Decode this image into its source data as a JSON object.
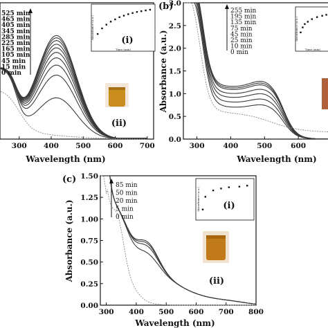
{
  "chart_data": [
    {
      "type": "line",
      "panel": "",
      "xlabel": "Wavelength (nm)",
      "ylabel": "",
      "xlim": [
        240,
        720
      ],
      "ylim": [
        0,
        3.0
      ],
      "x_ticks": [
        "300",
        "400",
        "500",
        "600",
        "700"
      ],
      "y_ticks": [],
      "legend": [
        "525 min",
        "465 min",
        "405 min",
        "345 min",
        "285 min",
        "225 min",
        "165 min",
        "105 min",
        "45 min",
        "15 min",
        "0 min"
      ],
      "series": [
        {
          "name": "525 min",
          "peak": 2.27
        },
        {
          "name": "465 min",
          "peak": 2.22
        },
        {
          "name": "405 min",
          "peak": 2.16
        },
        {
          "name": "345 min",
          "peak": 2.08
        },
        {
          "name": "285 min",
          "peak": 2.0
        },
        {
          "name": "225 min",
          "peak": 1.9
        },
        {
          "name": "165 min",
          "peak": 1.78
        },
        {
          "name": "105 min",
          "peak": 1.62
        },
        {
          "name": "45 min",
          "peak": 1.4
        },
        {
          "name": "15 min",
          "peak": 0.9
        },
        {
          "name": "0 min",
          "peak": 0.2
        }
      ],
      "inset": {
        "label": "(i)",
        "xlabel": "Time (min)",
        "ylabel": "Absorbance (a.u.)",
        "points": [
          [
            20,
            0.35
          ],
          [
            60,
            0.5
          ],
          [
            100,
            0.6
          ],
          [
            140,
            0.68
          ],
          [
            180,
            0.74
          ],
          [
            220,
            0.8
          ],
          [
            260,
            0.84
          ],
          [
            300,
            0.88
          ],
          [
            340,
            0.91
          ],
          [
            380,
            0.94
          ],
          [
            420,
            0.96
          ],
          [
            460,
            0.98
          ],
          [
            500,
            1.0
          ]
        ]
      },
      "photo_label": "(ii)"
    },
    {
      "type": "line",
      "panel": "(b)",
      "xlabel": "Wavelength (nm)",
      "ylabel": "Absorbance (a.u.)",
      "xlim": [
        260,
        700
      ],
      "ylim": [
        0.0,
        3.0
      ],
      "x_ticks": [
        "300",
        "400",
        "500",
        "600"
      ],
      "y_ticks": [
        "0.0",
        "0.5",
        "1.0",
        "1.5",
        "2.0",
        "2.5",
        "3.0"
      ],
      "legend": [
        "255 min",
        "195 min",
        "135 min",
        "75 min",
        "45 min",
        "25 min",
        "10 min",
        "0 min"
      ],
      "series": [
        {
          "name": "255 min",
          "shoulder": 1.28
        },
        {
          "name": "195 min",
          "shoulder": 1.24
        },
        {
          "name": "135 min",
          "shoulder": 1.2
        },
        {
          "name": "75 min",
          "shoulder": 1.1
        },
        {
          "name": "45 min",
          "shoulder": 1.0
        },
        {
          "name": "25 min",
          "shoulder": 0.88
        },
        {
          "name": "10 min",
          "shoulder": 0.75
        },
        {
          "name": "0 min",
          "shoulder": 0.3
        }
      ],
      "inset": {
        "label": "(i)",
        "xlabel": "Time (min)",
        "ylabel": "Absorbance (a.u.)",
        "points": [
          [
            10,
            0.4
          ],
          [
            30,
            0.55
          ],
          [
            50,
            0.65
          ],
          [
            80,
            0.72
          ],
          [
            120,
            0.8
          ],
          [
            170,
            0.86
          ],
          [
            220,
            0.9
          ],
          [
            260,
            0.93
          ]
        ]
      }
    },
    {
      "type": "line",
      "panel": "(c)",
      "xlabel": "Wavelength (nm)",
      "ylabel": "Absorbance (a.u.)",
      "xlim": [
        280,
        800
      ],
      "ylim": [
        0.0,
        1.5
      ],
      "x_ticks": [
        "300",
        "400",
        "500",
        "600",
        "700",
        "800"
      ],
      "y_ticks": [
        "0.00",
        "0.25",
        "0.50",
        "0.75",
        "1.00",
        "1.25",
        "1.50"
      ],
      "legend": [
        "85 min",
        "50 min",
        "20 min",
        "5 min",
        "0 min"
      ],
      "series": [
        {
          "name": "85 min",
          "peak": 0.85
        },
        {
          "name": "50 min",
          "peak": 0.83
        },
        {
          "name": "20 min",
          "peak": 0.8
        },
        {
          "name": "5 min",
          "peak": 0.72
        },
        {
          "name": "0 min",
          "peak": 0.0
        }
      ],
      "inset": {
        "label": "(i)",
        "xlabel": "Time (min)",
        "ylabel": "Absorbance (a.u.)",
        "points": [
          [
            0,
            0.2
          ],
          [
            5,
            0.6
          ],
          [
            20,
            0.8
          ],
          [
            35,
            0.86
          ],
          [
            50,
            0.9
          ],
          [
            70,
            0.92
          ],
          [
            85,
            0.95
          ]
        ]
      },
      "photo_label": "(ii)"
    }
  ],
  "colors": {
    "line": "#3a3a3a",
    "dotted": "#888888",
    "vial_a": "#c98d1e",
    "vial_b": "#b0603a",
    "vial_c": "#c07a1a"
  }
}
